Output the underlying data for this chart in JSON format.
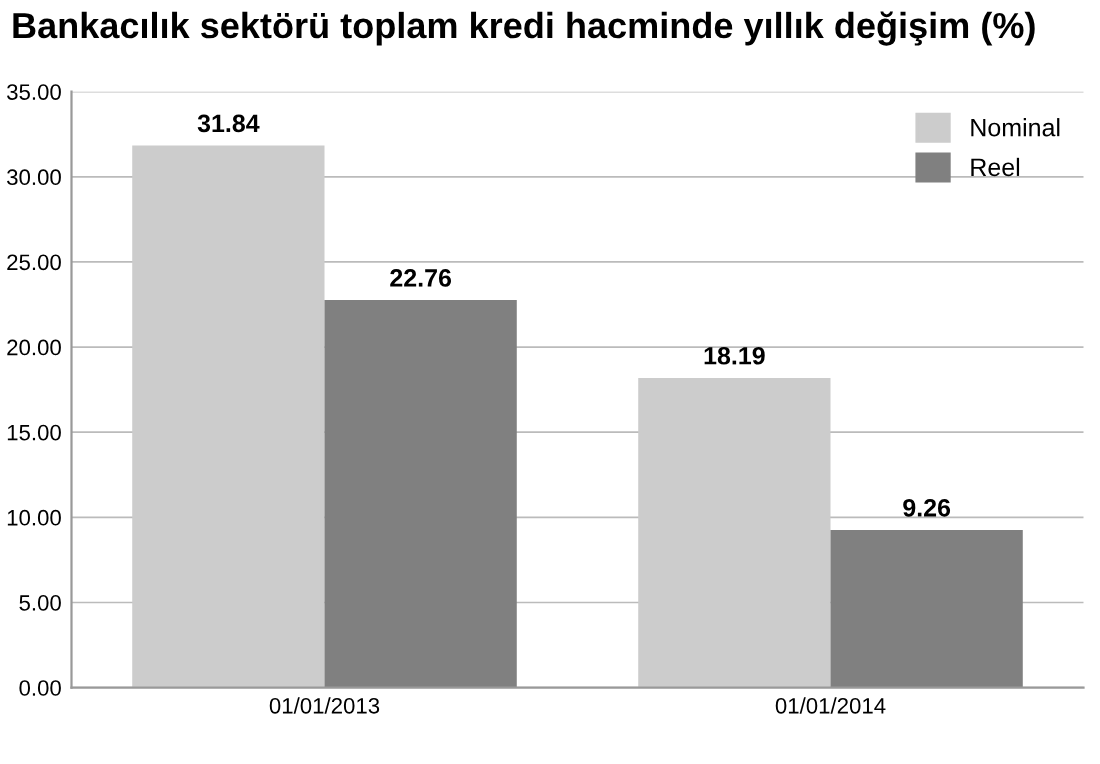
{
  "chart_data": {
    "type": "bar",
    "title": "Bankacılık sektörü toplam kredi hacminde yıllık değişim (%)",
    "categories": [
      "01/01/2013",
      "01/01/2014"
    ],
    "series": [
      {
        "name": "Nominal",
        "color": "#cccccc",
        "values": [
          31.84,
          18.19
        ]
      },
      {
        "name": "Reel",
        "color": "#808080",
        "values": [
          22.76,
          9.26
        ]
      }
    ],
    "ylim": [
      0,
      35
    ],
    "yticks": [
      {
        "value": 0,
        "label": "0.00"
      },
      {
        "value": 5,
        "label": "5.00"
      },
      {
        "value": 10,
        "label": "10.00"
      },
      {
        "value": 15,
        "label": "15.00"
      },
      {
        "value": 20,
        "label": "20.00"
      },
      {
        "value": 25,
        "label": "25.00"
      },
      {
        "value": 30,
        "label": "30.00"
      },
      {
        "value": 35,
        "label": "35.00"
      }
    ],
    "grid": "y",
    "legend": "top right",
    "data_labels": true
  }
}
